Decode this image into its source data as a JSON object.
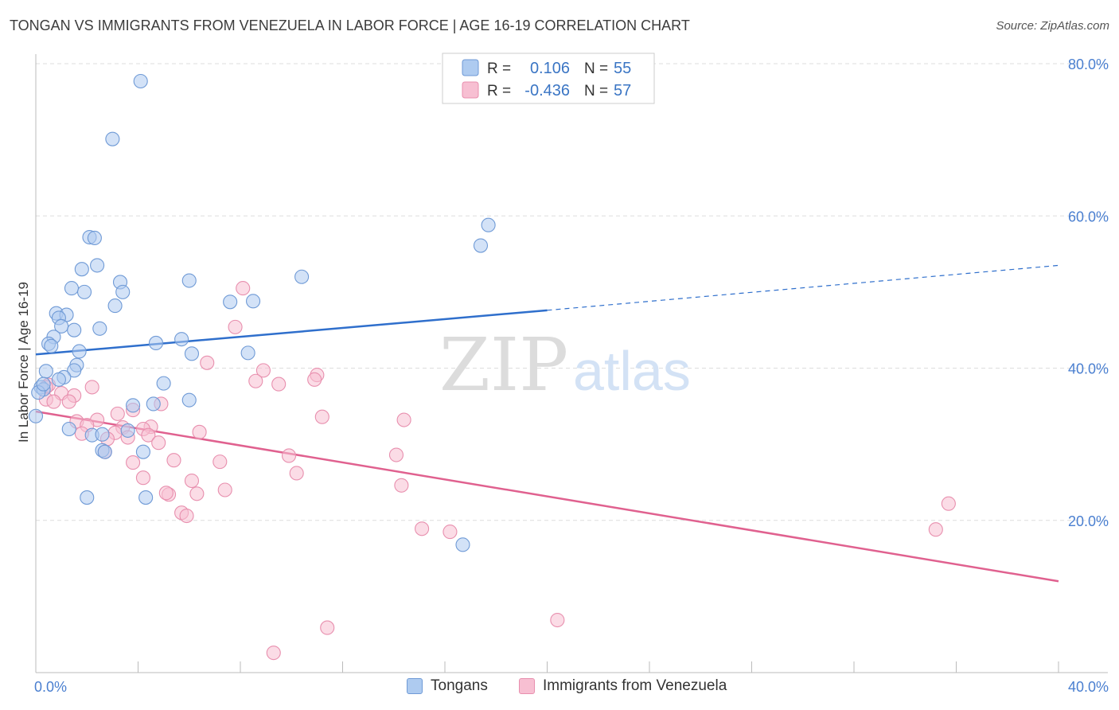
{
  "header": {
    "title": "TONGAN VS IMMIGRANTS FROM VENEZUELA IN LABOR FORCE | AGE 16-19 CORRELATION CHART",
    "source": "Source: ZipAtlas.com"
  },
  "watermark": {
    "zip": "ZIP",
    "atlas": "atlas"
  },
  "chart_data": {
    "type": "scatter",
    "title": "TONGAN VS IMMIGRANTS FROM VENEZUELA IN LABOR FORCE | AGE 16-19 CORRELATION CHART",
    "ylabel": "In Labor Force | Age 16-19",
    "xlabel": "",
    "xlim": [
      0,
      40
    ],
    "ylim": [
      0,
      80
    ],
    "x_tick_labels": [
      "0.0%",
      "40.0%"
    ],
    "y_ticks": [
      20,
      40,
      60,
      80
    ],
    "y_tick_labels": [
      "20.0%",
      "40.0%",
      "60.0%",
      "80.0%"
    ],
    "grid": "horizontal dashed",
    "legend_position": "top-center",
    "colors": {
      "tongans_fill": "#aecbf0",
      "tongans_stroke": "#6f9ad6",
      "tongans_line": "#2f6fcc",
      "venezuela_fill": "#f7bfd2",
      "venezuela_stroke": "#e88fae",
      "venezuela_line": "#e0618f",
      "value_text": "#3a75c4",
      "tick_text": "#4a7fd0"
    },
    "stats": [
      {
        "r_label": "R =",
        "r_value": "0.106",
        "n_label": "N =",
        "n_value": "55"
      },
      {
        "r_label": "R =",
        "r_value": "-0.436",
        "n_label": "N =",
        "n_value": "57"
      }
    ],
    "series": [
      {
        "name": "Tongans",
        "trend": {
          "x0": 0,
          "y0": 41.8,
          "x1": 20,
          "y1": 47.6,
          "dash_to_x": 40,
          "dash_to_y": 53.5
        },
        "points": [
          [
            4.1,
            77.7
          ],
          [
            3.0,
            70.1
          ],
          [
            17.7,
            58.8
          ],
          [
            17.4,
            56.1
          ],
          [
            2.1,
            57.2
          ],
          [
            2.3,
            57.1
          ],
          [
            2.4,
            53.5
          ],
          [
            1.8,
            53.0
          ],
          [
            3.3,
            51.3
          ],
          [
            6.0,
            51.5
          ],
          [
            10.4,
            52.0
          ],
          [
            1.4,
            50.5
          ],
          [
            1.9,
            50.0
          ],
          [
            3.4,
            50.0
          ],
          [
            3.1,
            48.2
          ],
          [
            7.6,
            48.7
          ],
          [
            8.5,
            48.8
          ],
          [
            0.8,
            47.2
          ],
          [
            1.2,
            47.0
          ],
          [
            0.9,
            46.6
          ],
          [
            1.0,
            45.5
          ],
          [
            1.5,
            45.0
          ],
          [
            2.5,
            45.2
          ],
          [
            0.7,
            44.1
          ],
          [
            5.7,
            43.8
          ],
          [
            4.7,
            43.3
          ],
          [
            0.5,
            43.2
          ],
          [
            0.6,
            42.9
          ],
          [
            1.7,
            42.2
          ],
          [
            6.1,
            41.9
          ],
          [
            8.3,
            42.0
          ],
          [
            1.6,
            40.4
          ],
          [
            1.5,
            39.7
          ],
          [
            0.4,
            39.6
          ],
          [
            1.1,
            38.8
          ],
          [
            0.9,
            38.5
          ],
          [
            5.0,
            38.0
          ],
          [
            0.2,
            37.5
          ],
          [
            0.3,
            37.2
          ],
          [
            0.1,
            36.8
          ],
          [
            6.0,
            35.8
          ],
          [
            4.6,
            35.3
          ],
          [
            3.8,
            35.1
          ],
          [
            0.0,
            33.7
          ],
          [
            1.3,
            32.0
          ],
          [
            3.6,
            31.8
          ],
          [
            2.2,
            31.2
          ],
          [
            2.6,
            31.3
          ],
          [
            4.2,
            29.0
          ],
          [
            2.6,
            29.2
          ],
          [
            2.7,
            29.0
          ],
          [
            2.0,
            23.0
          ],
          [
            4.3,
            23.0
          ],
          [
            16.7,
            16.8
          ],
          [
            0.3,
            37.9
          ]
        ]
      },
      {
        "name": "Immigrants from Venezuela",
        "trend": {
          "x0": 0,
          "y0": 34.3,
          "x1": 40,
          "y1": 12.0
        },
        "points": [
          [
            8.1,
            50.5
          ],
          [
            7.8,
            45.4
          ],
          [
            6.7,
            40.7
          ],
          [
            8.9,
            39.7
          ],
          [
            11.0,
            39.1
          ],
          [
            10.9,
            38.5
          ],
          [
            8.6,
            38.3
          ],
          [
            9.5,
            37.9
          ],
          [
            0.5,
            37.8
          ],
          [
            0.4,
            37.5
          ],
          [
            2.2,
            37.5
          ],
          [
            1.0,
            36.7
          ],
          [
            1.5,
            36.4
          ],
          [
            0.4,
            35.9
          ],
          [
            0.7,
            35.6
          ],
          [
            1.3,
            35.6
          ],
          [
            4.9,
            35.3
          ],
          [
            3.8,
            34.5
          ],
          [
            3.2,
            34.0
          ],
          [
            11.2,
            33.6
          ],
          [
            14.4,
            33.2
          ],
          [
            1.6,
            33.0
          ],
          [
            2.4,
            33.2
          ],
          [
            2.0,
            32.5
          ],
          [
            4.5,
            32.3
          ],
          [
            4.2,
            32.0
          ],
          [
            3.4,
            32.2
          ],
          [
            3.1,
            31.5
          ],
          [
            6.4,
            31.6
          ],
          [
            1.8,
            31.4
          ],
          [
            4.4,
            31.2
          ],
          [
            3.6,
            30.9
          ],
          [
            2.8,
            30.7
          ],
          [
            4.8,
            30.2
          ],
          [
            2.7,
            29.0
          ],
          [
            9.9,
            28.5
          ],
          [
            14.1,
            28.6
          ],
          [
            5.4,
            27.9
          ],
          [
            7.2,
            27.7
          ],
          [
            3.8,
            27.6
          ],
          [
            10.2,
            26.2
          ],
          [
            4.2,
            25.6
          ],
          [
            6.1,
            25.2
          ],
          [
            14.3,
            24.6
          ],
          [
            7.4,
            24.0
          ],
          [
            5.2,
            23.4
          ],
          [
            6.3,
            23.5
          ],
          [
            5.1,
            23.6
          ],
          [
            35.7,
            22.2
          ],
          [
            5.7,
            21.0
          ],
          [
            5.9,
            20.6
          ],
          [
            15.1,
            18.9
          ],
          [
            16.2,
            18.5
          ],
          [
            35.2,
            18.8
          ],
          [
            20.4,
            6.9
          ],
          [
            11.4,
            5.9
          ],
          [
            9.3,
            2.6
          ]
        ]
      }
    ]
  }
}
